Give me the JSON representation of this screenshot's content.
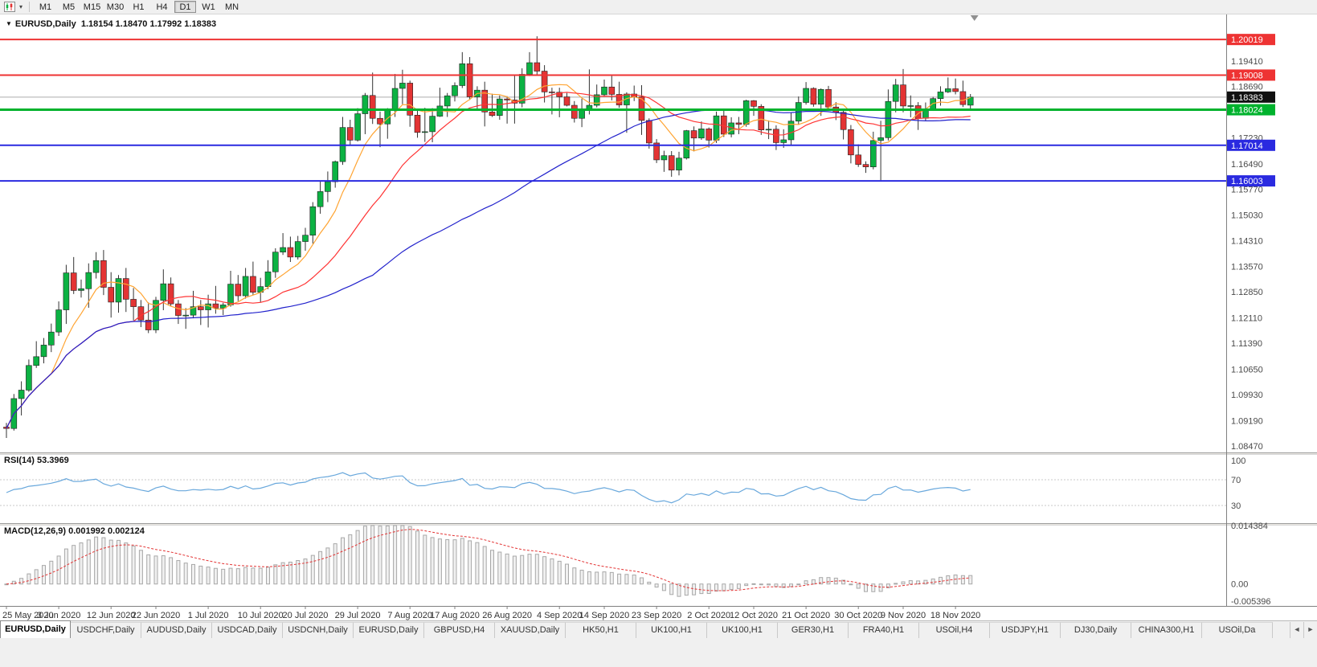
{
  "toolbar": {
    "dropdown_caret": "▾",
    "timeframes": [
      "M1",
      "M5",
      "M15",
      "M30",
      "H1",
      "H4",
      "D1",
      "W1",
      "MN"
    ],
    "active_timeframe": "D1"
  },
  "chart_window": {
    "menu_icon": "▼",
    "title_symbol": "EURUSD,Daily",
    "title_ohlc": "1.18154 1.18470 1.17992 1.18383"
  },
  "chart_data": {
    "type": "candlestick",
    "symbol": "EURUSD",
    "timeframe": "Daily",
    "ohlc_display": {
      "open": "1.18154",
      "high": "1.18470",
      "low": "1.17992",
      "close": "1.18383"
    },
    "price_range": {
      "max": 1.2073,
      "min": 1.0829
    },
    "bid_price": 1.18383,
    "colors": {
      "bull": "#0cb243",
      "bear": "#e33434",
      "wick": "#333333"
    },
    "candles": [
      [
        1.0901,
        1.0913,
        1.087,
        1.0897
      ],
      [
        1.0897,
        1.0995,
        1.0891,
        1.0982
      ],
      [
        1.0982,
        1.1031,
        1.0934,
        1.1006
      ],
      [
        1.1006,
        1.1093,
        1.1001,
        1.1076
      ],
      [
        1.1076,
        1.1145,
        1.1069,
        1.1101
      ],
      [
        1.1101,
        1.1154,
        1.1082,
        1.1134
      ],
      [
        1.1134,
        1.1195,
        1.1114,
        1.1171
      ],
      [
        1.1171,
        1.1258,
        1.116,
        1.1234
      ],
      [
        1.1234,
        1.1362,
        1.1194,
        1.1339
      ],
      [
        1.1339,
        1.1384,
        1.1279,
        1.1289
      ],
      [
        1.1289,
        1.132,
        1.1269,
        1.1294
      ],
      [
        1.1294,
        1.1366,
        1.124,
        1.134
      ],
      [
        1.134,
        1.1398,
        1.1323,
        1.1374
      ],
      [
        1.1374,
        1.1404,
        1.1276,
        1.1298
      ],
      [
        1.1298,
        1.1341,
        1.1212,
        1.1256
      ],
      [
        1.1256,
        1.1333,
        1.1226,
        1.1323
      ],
      [
        1.1323,
        1.1353,
        1.1228,
        1.1264
      ],
      [
        1.1264,
        1.1296,
        1.1204,
        1.1243
      ],
      [
        1.1243,
        1.1262,
        1.1185,
        1.1205
      ],
      [
        1.1205,
        1.1255,
        1.1168,
        1.1177
      ],
      [
        1.1177,
        1.1271,
        1.1168,
        1.1261
      ],
      [
        1.1261,
        1.1349,
        1.1233,
        1.1308
      ],
      [
        1.1308,
        1.1326,
        1.1245,
        1.1251
      ],
      [
        1.1251,
        1.1262,
        1.1194,
        1.1218
      ],
      [
        1.1218,
        1.1239,
        1.118,
        1.1219
      ],
      [
        1.1219,
        1.1288,
        1.121,
        1.1243
      ],
      [
        1.1243,
        1.1262,
        1.1191,
        1.1234
      ],
      [
        1.1234,
        1.1277,
        1.1184,
        1.1251
      ],
      [
        1.1251,
        1.1302,
        1.1223,
        1.1239
      ],
      [
        1.1239,
        1.1254,
        1.1219,
        1.1248
      ],
      [
        1.1248,
        1.1345,
        1.1243,
        1.1307
      ],
      [
        1.1307,
        1.1333,
        1.1259,
        1.1274
      ],
      [
        1.1274,
        1.1353,
        1.1266,
        1.1329
      ],
      [
        1.1329,
        1.1371,
        1.1276,
        1.1284
      ],
      [
        1.1284,
        1.1325,
        1.1255,
        1.13
      ],
      [
        1.13,
        1.1375,
        1.1293,
        1.1342
      ],
      [
        1.1342,
        1.1409,
        1.1325,
        1.1398
      ],
      [
        1.1398,
        1.1452,
        1.139,
        1.1411
      ],
      [
        1.1411,
        1.1442,
        1.137,
        1.1384
      ],
      [
        1.1384,
        1.1444,
        1.1377,
        1.1428
      ],
      [
        1.1428,
        1.1467,
        1.1402,
        1.1446
      ],
      [
        1.1446,
        1.154,
        1.1422,
        1.1527
      ],
      [
        1.1527,
        1.1601,
        1.1507,
        1.157
      ],
      [
        1.157,
        1.1627,
        1.154,
        1.1598
      ],
      [
        1.1598,
        1.1658,
        1.1581,
        1.1655
      ],
      [
        1.1655,
        1.1782,
        1.1646,
        1.1752
      ],
      [
        1.1752,
        1.1774,
        1.17,
        1.1716
      ],
      [
        1.1716,
        1.1807,
        1.1712,
        1.1791
      ],
      [
        1.1791,
        1.185,
        1.1733,
        1.1843
      ],
      [
        1.1843,
        1.1908,
        1.1762,
        1.1778
      ],
      [
        1.1778,
        1.1797,
        1.1696,
        1.1762
      ],
      [
        1.1762,
        1.1807,
        1.172,
        1.1804
      ],
      [
        1.1804,
        1.1904,
        1.1782,
        1.1863
      ],
      [
        1.1863,
        1.1916,
        1.1818,
        1.1878
      ],
      [
        1.1878,
        1.1885,
        1.1754,
        1.1787
      ],
      [
        1.1787,
        1.1806,
        1.1723,
        1.1738
      ],
      [
        1.1738,
        1.1808,
        1.1711,
        1.174
      ],
      [
        1.174,
        1.1807,
        1.171,
        1.1784
      ],
      [
        1.1784,
        1.1865,
        1.1782,
        1.1813
      ],
      [
        1.1813,
        1.185,
        1.1782,
        1.1842
      ],
      [
        1.1842,
        1.188,
        1.1826,
        1.1871
      ],
      [
        1.1871,
        1.1966,
        1.1864,
        1.1933
      ],
      [
        1.1933,
        1.1952,
        1.183,
        1.1839
      ],
      [
        1.1839,
        1.1869,
        1.1803,
        1.1858
      ],
      [
        1.1858,
        1.1882,
        1.1755,
        1.1796
      ],
      [
        1.1796,
        1.1848,
        1.1782,
        1.1786
      ],
      [
        1.1786,
        1.1843,
        1.1774,
        1.1833
      ],
      [
        1.1833,
        1.1841,
        1.1763,
        1.183
      ],
      [
        1.183,
        1.1901,
        1.1763,
        1.1821
      ],
      [
        1.1821,
        1.192,
        1.1809,
        1.1903
      ],
      [
        1.1903,
        1.1966,
        1.1898,
        1.1936
      ],
      [
        1.1936,
        1.2011,
        1.1901,
        1.1912
      ],
      [
        1.1912,
        1.1929,
        1.1823,
        1.1853
      ],
      [
        1.1853,
        1.1865,
        1.1789,
        1.1852
      ],
      [
        1.1852,
        1.1865,
        1.1781,
        1.1839
      ],
      [
        1.1839,
        1.185,
        1.1812,
        1.1815
      ],
      [
        1.1815,
        1.1827,
        1.1766,
        1.1778
      ],
      [
        1.1778,
        1.1834,
        1.1753,
        1.1802
      ],
      [
        1.1802,
        1.1917,
        1.1789,
        1.1815
      ],
      [
        1.1815,
        1.1874,
        1.1809,
        1.1845
      ],
      [
        1.1845,
        1.1888,
        1.1839,
        1.1867
      ],
      [
        1.1867,
        1.19,
        1.1829,
        1.1846
      ],
      [
        1.1846,
        1.1882,
        1.1808,
        1.1816
      ],
      [
        1.1816,
        1.1852,
        1.1737,
        1.1847
      ],
      [
        1.1847,
        1.1871,
        1.1827,
        1.1839
      ],
      [
        1.1839,
        1.1872,
        1.1731,
        1.1772
      ],
      [
        1.1772,
        1.1778,
        1.1692,
        1.1708
      ],
      [
        1.1708,
        1.1719,
        1.1651,
        1.166
      ],
      [
        1.166,
        1.1686,
        1.1626,
        1.1672
      ],
      [
        1.1672,
        1.1685,
        1.1612,
        1.1631
      ],
      [
        1.1631,
        1.1683,
        1.1616,
        1.1665
      ],
      [
        1.1665,
        1.1745,
        1.1661,
        1.1743
      ],
      [
        1.1743,
        1.1755,
        1.1684,
        1.1722
      ],
      [
        1.1722,
        1.1769,
        1.1717,
        1.1748
      ],
      [
        1.1748,
        1.1752,
        1.1695,
        1.1716
      ],
      [
        1.1716,
        1.1797,
        1.1708,
        1.1785
      ],
      [
        1.1785,
        1.1806,
        1.1725,
        1.1733
      ],
      [
        1.1733,
        1.1781,
        1.1724,
        1.1765
      ],
      [
        1.1765,
        1.1782,
        1.1733,
        1.1761
      ],
      [
        1.1761,
        1.1831,
        1.1754,
        1.1828
      ],
      [
        1.1828,
        1.183,
        1.1785,
        1.1812
      ],
      [
        1.1812,
        1.1818,
        1.1731,
        1.1745
      ],
      [
        1.1745,
        1.1772,
        1.1719,
        1.1747
      ],
      [
        1.1747,
        1.1758,
        1.1688,
        1.1709
      ],
      [
        1.1709,
        1.1747,
        1.1694,
        1.1717
      ],
      [
        1.1717,
        1.1794,
        1.1703,
        1.177
      ],
      [
        1.177,
        1.184,
        1.176,
        1.1823
      ],
      [
        1.1823,
        1.1881,
        1.1817,
        1.1863
      ],
      [
        1.1863,
        1.1866,
        1.1811,
        1.1818
      ],
      [
        1.1818,
        1.1863,
        1.1785,
        1.186
      ],
      [
        1.186,
        1.187,
        1.1803,
        1.181
      ],
      [
        1.181,
        1.1824,
        1.1773,
        1.1795
      ],
      [
        1.1795,
        1.18,
        1.1718,
        1.1746
      ],
      [
        1.1746,
        1.1759,
        1.165,
        1.1674
      ],
      [
        1.1674,
        1.1704,
        1.164,
        1.1647
      ],
      [
        1.1647,
        1.1656,
        1.1623,
        1.164
      ],
      [
        1.164,
        1.174,
        1.1633,
        1.1715
      ],
      [
        1.1715,
        1.1771,
        1.1602,
        1.1723
      ],
      [
        1.1723,
        1.186,
        1.1715,
        1.1826
      ],
      [
        1.1826,
        1.189,
        1.1795,
        1.1873
      ],
      [
        1.1873,
        1.1918,
        1.1795,
        1.1813
      ],
      [
        1.1813,
        1.1843,
        1.1781,
        1.1814
      ],
      [
        1.1814,
        1.1824,
        1.1745,
        1.1778
      ],
      [
        1.1778,
        1.1823,
        1.1771,
        1.1804
      ],
      [
        1.1804,
        1.1839,
        1.1799,
        1.1834
      ],
      [
        1.1834,
        1.1869,
        1.1814,
        1.1853
      ],
      [
        1.1853,
        1.1894,
        1.185,
        1.1862
      ],
      [
        1.1862,
        1.1891,
        1.1846,
        1.1854
      ],
      [
        1.1854,
        1.1885,
        1.181,
        1.1817
      ],
      [
        1.18154,
        1.1847,
        1.17992,
        1.18383
      ]
    ],
    "date_labels": [
      [
        "25 May 2020",
        0
      ],
      [
        "3 Jun 2020",
        7
      ],
      [
        "12 Jun 2020",
        14
      ],
      [
        "22 Jun 2020",
        20
      ],
      [
        "1 Jul 2020",
        27
      ],
      [
        "10 Jul 2020",
        34
      ],
      [
        "20 Jul 2020",
        40
      ],
      [
        "29 Jul 2020",
        47
      ],
      [
        "7 Aug 2020",
        54
      ],
      [
        "17 Aug 2020",
        60
      ],
      [
        "26 Aug 2020",
        67
      ],
      [
        "4 Sep 2020",
        74
      ],
      [
        "14 Sep 2020",
        80
      ],
      [
        "23 Sep 2020",
        87
      ],
      [
        "2 Oct 2020",
        94
      ],
      [
        "12 Oct 2020",
        100
      ],
      [
        "21 Oct 2020",
        107
      ],
      [
        "30 Oct 2020",
        114
      ],
      [
        "9 Nov 2020",
        120
      ],
      [
        "18 Nov 2020",
        127
      ]
    ],
    "gray_axis_labels": [
      1.1941,
      1.1869,
      1.1723,
      1.1649,
      1.1577,
      1.1503,
      1.1431,
      1.1357,
      1.1285,
      1.1211,
      1.1139,
      1.1065,
      1.0993,
      1.0919,
      1.0847
    ],
    "price_tags": [
      {
        "text": "1.20019",
        "price": 1.20019,
        "bg": "#ee3333"
      },
      {
        "text": "1.19008",
        "price": 1.19008,
        "bg": "#ee3333"
      },
      {
        "text": "1.18383",
        "price": 1.18383,
        "bg": "#111111"
      },
      {
        "text": "1.18024",
        "price": 1.18024,
        "bg": "#00b22d"
      },
      {
        "text": "1.17014",
        "price": 1.17014,
        "bg": "#2a2ae0"
      },
      {
        "text": "1.16003",
        "price": 1.16003,
        "bg": "#2a2ae0"
      }
    ],
    "hlines": [
      {
        "price": 1.20019,
        "color": "#ee3333",
        "width": 2
      },
      {
        "price": 1.19008,
        "color": "#ee3333",
        "width": 2
      },
      {
        "price": 1.18024,
        "color": "#00b22d",
        "width": 3
      },
      {
        "price": 1.17014,
        "color": "#2a2ae0",
        "width": 2
      },
      {
        "price": 1.16003,
        "color": "#2a2ae0",
        "width": 2
      }
    ],
    "moving_averages": [
      {
        "name": "ma-fast",
        "window": 7,
        "color": "#ffa432"
      },
      {
        "name": "ma-medium",
        "window": 18,
        "color": "#ff3333"
      },
      {
        "name": "ma-slow",
        "window": 50,
        "color": "#2222cc"
      }
    ],
    "rsi": {
      "label": "RSI(14) 53.3969",
      "period": 14,
      "last_value": 53.3969,
      "line_color": "#69a8dc",
      "levels": [
        70,
        30
      ],
      "axis_labels": [
        100,
        70,
        30
      ]
    },
    "macd": {
      "label": "MACD(12,26,9) 0.001992 0.002124",
      "fast": 12,
      "slow": 26,
      "signal_period": 9,
      "main_value": 0.001992,
      "signal_value": 0.002124,
      "histogram_color": "#a8a8a8",
      "signal_color": "#e33434",
      "scale_max": 0.014384,
      "scale_min": -0.005396,
      "axis_labels": [
        [
          "0.014384",
          0.014384
        ],
        [
          "0.00",
          0
        ],
        [
          "-0.005396",
          -0.005396
        ]
      ]
    }
  },
  "tabs": {
    "scroll_left": "◄",
    "scroll_right": "►",
    "items": [
      {
        "label": "EURUSD,Daily",
        "active": true
      },
      {
        "label": "USDCHF,Daily"
      },
      {
        "label": "AUDUSD,Daily"
      },
      {
        "label": "USDCAD,Daily"
      },
      {
        "label": "USDCNH,Daily"
      },
      {
        "label": "EURUSD,Daily"
      },
      {
        "label": "GBPUSD,H4"
      },
      {
        "label": "XAUUSD,Daily"
      },
      {
        "label": "HK50,H1"
      },
      {
        "label": "UK100,H1"
      },
      {
        "label": "UK100,H1"
      },
      {
        "label": "GER30,H1"
      },
      {
        "label": "FRA40,H1"
      },
      {
        "label": "USOil,H4"
      },
      {
        "label": "USDJPY,H1"
      },
      {
        "label": "DJ30,Daily"
      },
      {
        "label": "CHINA300,H1"
      },
      {
        "label": "USOil,Da"
      }
    ]
  }
}
